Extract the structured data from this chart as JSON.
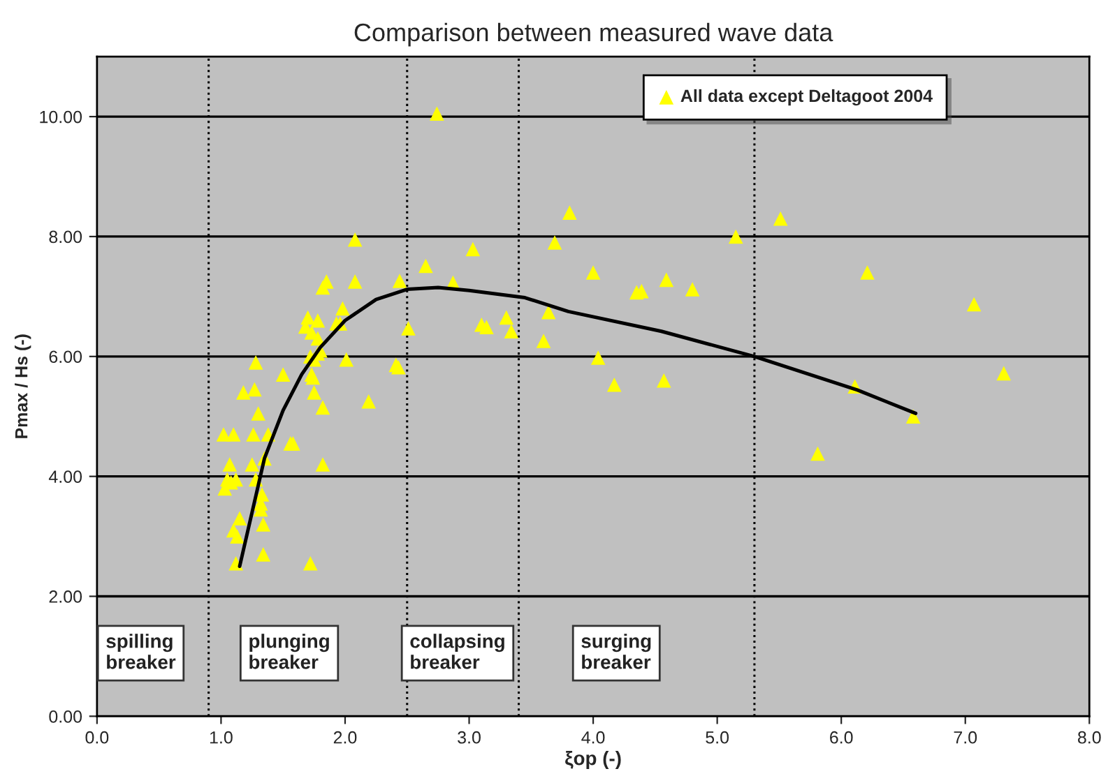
{
  "chart_data": {
    "type": "scatter",
    "title": "Comparison between measured wave data",
    "xlabel": "ξop (-)",
    "ylabel": "Pmax / Hs (-)",
    "xlim": [
      0,
      8
    ],
    "xticks": [
      {
        "value": 0,
        "label": "0.0"
      },
      {
        "value": 1,
        "label": "1.0"
      },
      {
        "value": 2,
        "label": "2.0"
      },
      {
        "value": 3,
        "label": "3.0"
      },
      {
        "value": 4,
        "label": "4.0"
      },
      {
        "value": 5,
        "label": "5.0"
      },
      {
        "value": 6,
        "label": "6.0"
      },
      {
        "value": 7,
        "label": "7.0"
      },
      {
        "value": 8,
        "label": "8.0"
      }
    ],
    "ylim": [
      0,
      11
    ],
    "yticks": [
      {
        "value": 0,
        "label": "0.00"
      },
      {
        "value": 2,
        "label": "2.00"
      },
      {
        "value": 4,
        "label": "4.00"
      },
      {
        "value": 6,
        "label": "6.00"
      },
      {
        "value": 8,
        "label": "8.00"
      },
      {
        "value": 10,
        "label": "10.00"
      }
    ],
    "grid": "y",
    "legend": "top right",
    "series": [
      {
        "name": "All data except Deltagoot 2004",
        "marker": "triangle",
        "color": "#ffff00",
        "x": [
          2.74,
          2.08,
          1.85,
          1.82,
          2.08,
          2.44,
          2.65,
          2.87,
          3.03,
          3.1,
          3.14,
          2.51,
          1.98,
          1.93,
          1.96,
          1.78,
          1.68,
          1.7,
          1.73,
          1.78,
          1.72,
          1.75,
          1.78,
          1.8,
          2.01,
          1.73,
          1.74,
          1.75,
          1.82,
          2.19,
          1.5,
          1.28,
          1.27,
          1.18,
          1.3,
          1.26,
          1.38,
          1.56,
          1.58,
          1.02,
          1.1,
          1.07,
          1.25,
          1.35,
          1.82,
          1.05,
          1.08,
          1.12,
          1.03,
          1.28,
          1.33,
          1.32,
          1.32,
          1.15,
          1.1,
          1.13,
          1.34,
          1.34,
          1.12,
          1.72,
          2.41,
          2.43,
          3.81,
          3.69,
          5.15,
          5.51,
          4.0,
          4.35,
          4.39,
          4.59,
          4.8,
          3.64,
          3.6,
          4.04,
          4.17,
          4.57,
          3.3,
          3.34,
          6.21,
          7.07,
          7.31,
          6.11,
          6.58,
          5.81
        ],
        "values": [
          10.05,
          7.95,
          7.25,
          7.15,
          7.25,
          7.26,
          7.51,
          7.23,
          7.79,
          6.53,
          6.49,
          6.47,
          6.8,
          6.55,
          6.55,
          6.6,
          6.5,
          6.65,
          6.4,
          6.3,
          6.0,
          5.95,
          6.05,
          6.1,
          5.95,
          5.7,
          5.65,
          5.4,
          5.15,
          5.25,
          5.7,
          5.9,
          5.45,
          5.4,
          5.05,
          4.7,
          4.7,
          4.55,
          4.55,
          4.7,
          4.7,
          4.2,
          4.2,
          4.3,
          4.2,
          3.95,
          3.9,
          3.95,
          3.8,
          3.95,
          3.7,
          3.55,
          3.45,
          3.3,
          3.1,
          3.0,
          3.2,
          2.7,
          2.55,
          2.55,
          5.86,
          5.82,
          8.4,
          7.9,
          8.0,
          8.3,
          7.4,
          7.07,
          7.09,
          7.28,
          7.12,
          6.74,
          6.26,
          5.98,
          5.53,
          5.6,
          6.65,
          6.42,
          7.4,
          6.87,
          5.72,
          5.5,
          5.0,
          4.38
        ]
      },
      {
        "type": "line",
        "color": "#000000",
        "x": [
          1.15,
          1.25,
          1.35,
          1.5,
          1.65,
          1.8,
          2.0,
          2.25,
          2.5,
          2.75,
          3.0,
          3.45,
          3.8,
          4.55,
          5.3,
          6.13,
          6.6
        ],
        "values": [
          2.5,
          3.4,
          4.3,
          5.1,
          5.7,
          6.15,
          6.6,
          6.95,
          7.12,
          7.15,
          7.1,
          6.98,
          6.75,
          6.42,
          6.0,
          5.44,
          5.05
        ]
      }
    ],
    "ref_lines": [
      {
        "axis": "x",
        "value": 0.9,
        "line_style": "dotted",
        "color": "#000000"
      },
      {
        "axis": "x",
        "value": 2.5,
        "line_style": "dotted",
        "color": "#000000"
      },
      {
        "axis": "x",
        "value": 3.4,
        "line_style": "dotted",
        "color": "#000000"
      },
      {
        "axis": "x",
        "value": 5.3,
        "line_style": "dotted",
        "color": "#000000"
      }
    ],
    "annotations": [
      "spilling\nbreaker",
      "plunging\nbreaker",
      "collapsing\nbreaker",
      "surging\nbreaker"
    ]
  }
}
